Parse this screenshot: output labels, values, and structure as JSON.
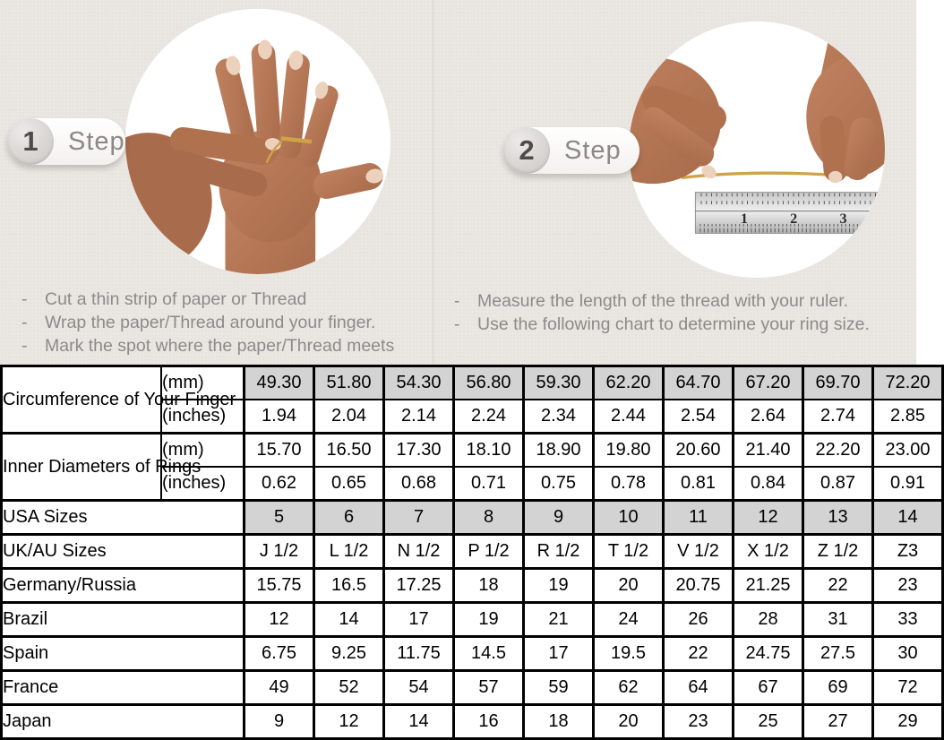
{
  "bullet_dash": "-",
  "step1": {
    "number": "1",
    "label": "Step",
    "bullets": [
      "Cut a thin strip of paper or Thread",
      "Wrap the paper/Thread around your finger.",
      "Mark the spot where the paper/Thread meets"
    ]
  },
  "step2": {
    "number": "2",
    "label": "Step",
    "bullets": [
      "Measure the length of the thread with your ruler.",
      "Use the following chart to determine your ring size."
    ]
  },
  "ruler_numbers": [
    "1",
    "2",
    "3"
  ],
  "table": {
    "groups": [
      {
        "label": "Circumference of Your Finger",
        "sub": [
          {
            "unit": "(mm)",
            "shaded": true,
            "values": [
              "49.30",
              "51.80",
              "54.30",
              "56.80",
              "59.30",
              "62.20",
              "64.70",
              "67.20",
              "69.70",
              "72.20"
            ]
          },
          {
            "unit": "(inches)",
            "shaded": false,
            "values": [
              "1.94",
              "2.04",
              "2.14",
              "2.24",
              "2.34",
              "2.44",
              "2.54",
              "2.64",
              "2.74",
              "2.85"
            ]
          }
        ]
      },
      {
        "label": "Inner Diameters of Rings",
        "sub": [
          {
            "unit": "(mm)",
            "shaded": false,
            "values": [
              "15.70",
              "16.50",
              "17.30",
              "18.10",
              "18.90",
              "19.80",
              "20.60",
              "21.40",
              "22.20",
              "23.00"
            ]
          },
          {
            "unit": "(inches)",
            "shaded": false,
            "values": [
              "0.62",
              "0.65",
              "0.68",
              "0.71",
              "0.75",
              "0.78",
              "0.81",
              "0.84",
              "0.87",
              "0.91"
            ]
          }
        ]
      }
    ],
    "rows": [
      {
        "label": "USA Sizes",
        "shaded": true,
        "values": [
          "5",
          "6",
          "7",
          "8",
          "9",
          "10",
          "11",
          "12",
          "13",
          "14"
        ]
      },
      {
        "label": "UK/AU Sizes",
        "shaded": false,
        "values": [
          "J 1/2",
          "L 1/2",
          "N 1/2",
          "P 1/2",
          "R 1/2",
          "T 1/2",
          "V 1/2",
          "X 1/2",
          "Z 1/2",
          "Z3"
        ]
      },
      {
        "label": "Germany/Russia",
        "shaded": false,
        "values": [
          "15.75",
          "16.5",
          "17.25",
          "18",
          "19",
          "20",
          "20.75",
          "21.25",
          "22",
          "23"
        ]
      },
      {
        "label": "Brazil",
        "shaded": false,
        "values": [
          "12",
          "14",
          "17",
          "19",
          "21",
          "24",
          "26",
          "28",
          "31",
          "33"
        ]
      },
      {
        "label": "Spain",
        "shaded": false,
        "values": [
          "6.75",
          "9.25",
          "11.75",
          "14.5",
          "17",
          "19.5",
          "22",
          "24.75",
          "27.5",
          "30"
        ]
      },
      {
        "label": "France",
        "shaded": false,
        "values": [
          "49",
          "52",
          "54",
          "57",
          "59",
          "62",
          "64",
          "67",
          "69",
          "72"
        ]
      },
      {
        "label": "Japan",
        "shaded": false,
        "values": [
          "9",
          "12",
          "14",
          "16",
          "18",
          "20",
          "23",
          "25",
          "27",
          "29"
        ]
      }
    ]
  },
  "colors": {
    "background": "#eae7e2",
    "shaded_cell": "#d3d3d3",
    "instruction_text": "#8b8b8b",
    "thread_gold": "#cfa348",
    "skin_base": "#b87b5a",
    "skin_dark": "#a86b4b"
  }
}
